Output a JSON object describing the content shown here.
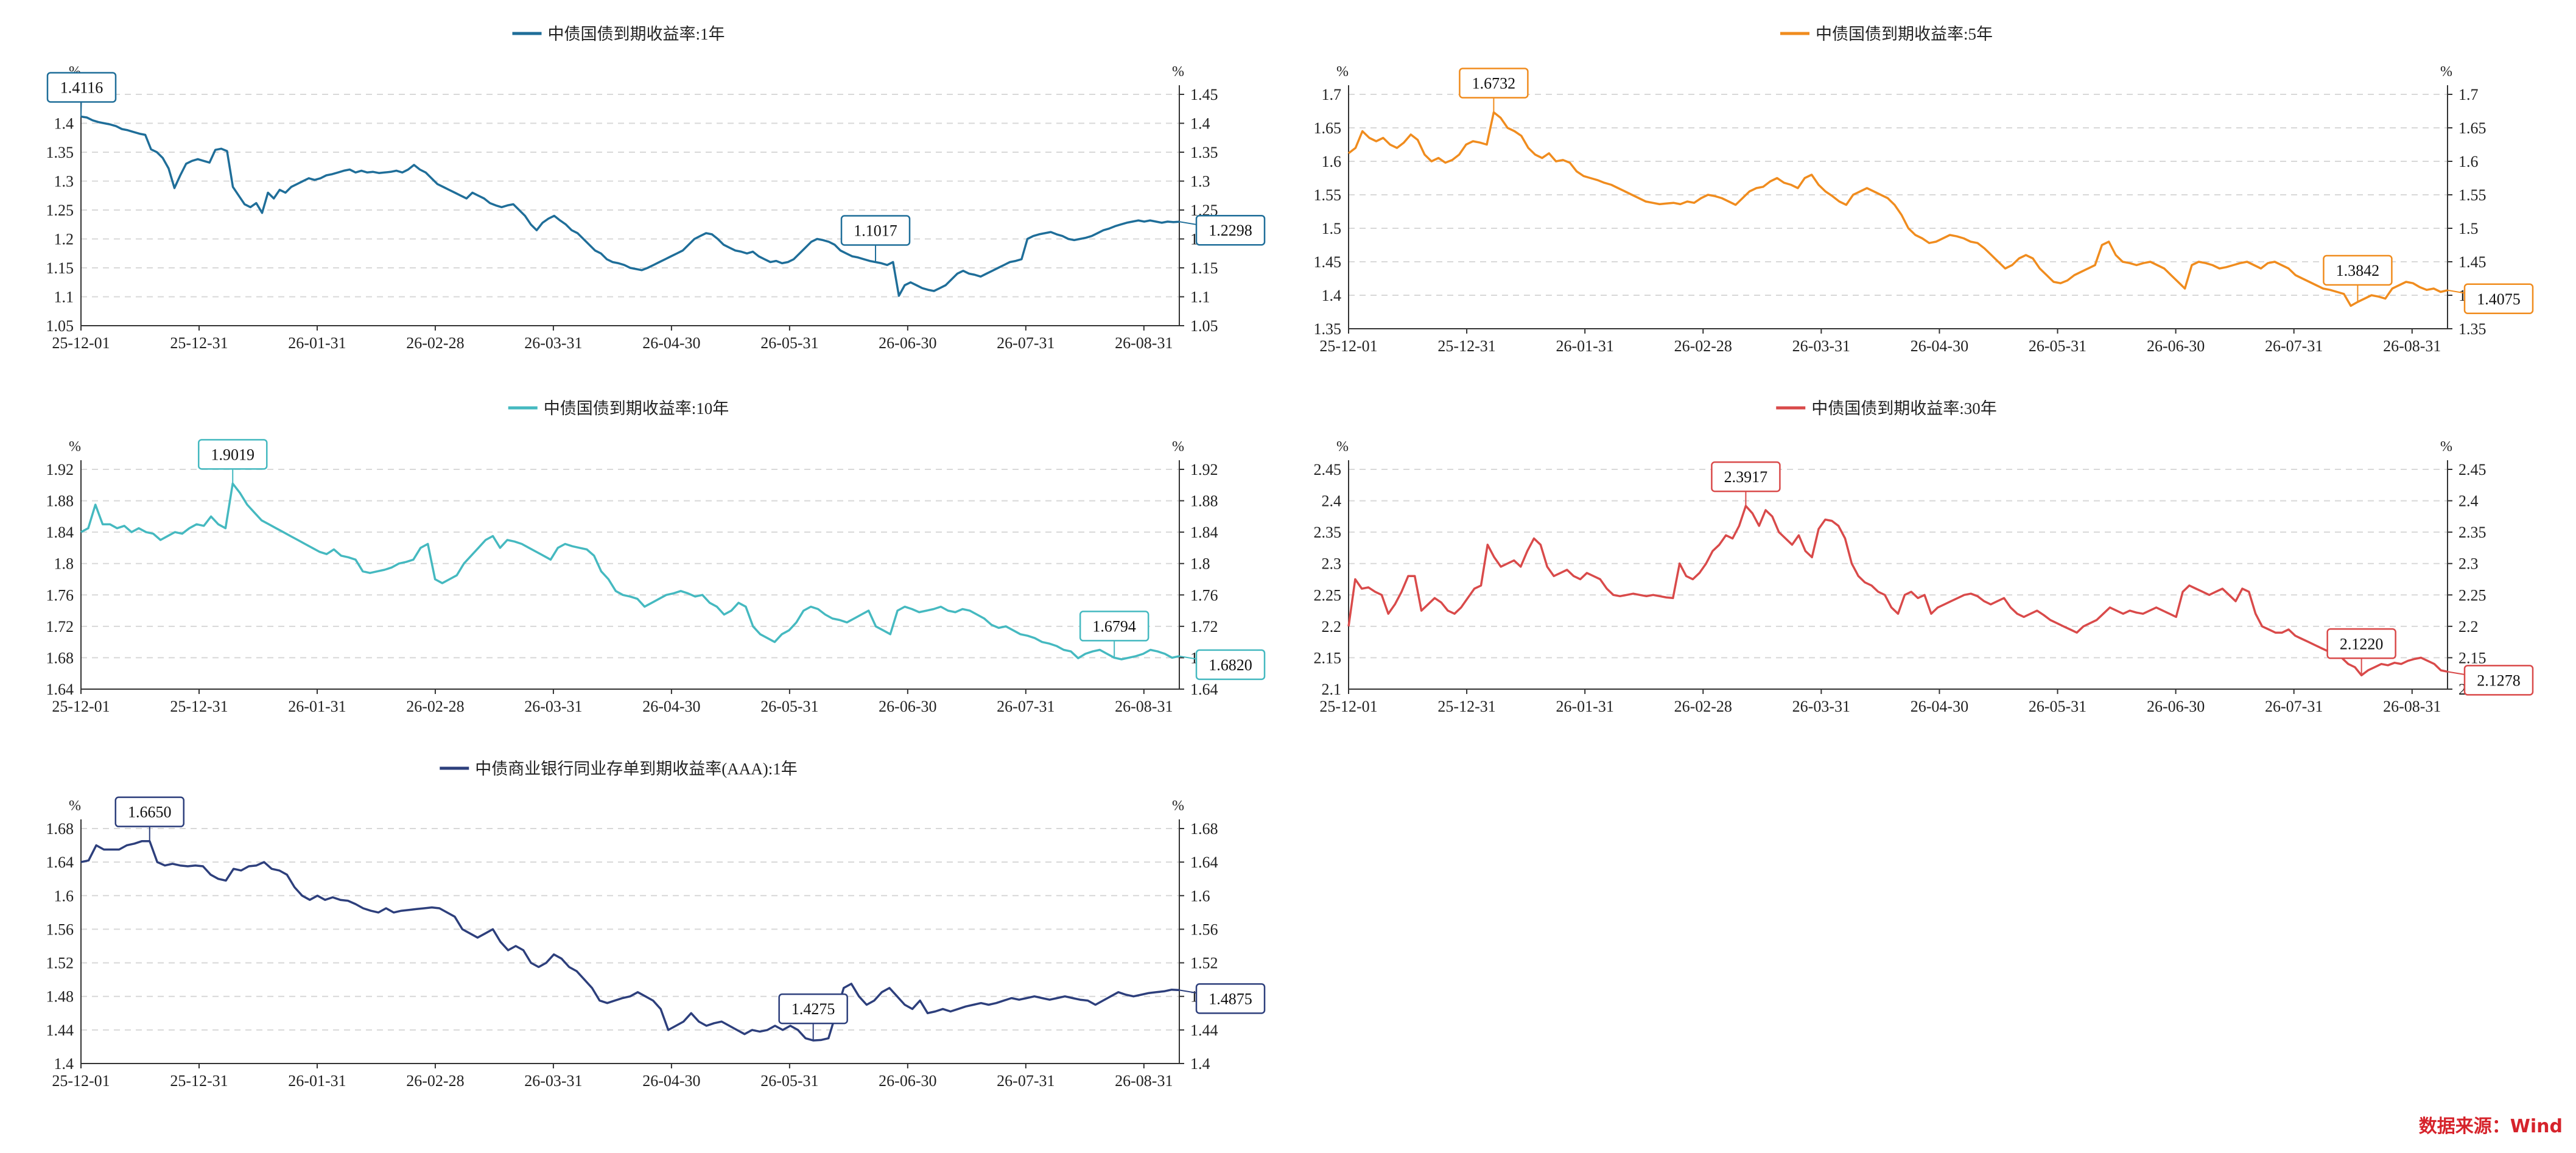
{
  "source_text": "数据来源：Wind",
  "chart_data": [
    {
      "type": "line",
      "title": "中债国债到期收益率:1年",
      "color": "#1f6e99",
      "unit": "%",
      "ylim": [
        1.05,
        1.45
      ],
      "yticks": [
        "1.05",
        "1.1",
        "1.15",
        "1.2",
        "1.25",
        "1.3",
        "1.35",
        "1.4",
        "1.45"
      ],
      "left_top_tick": "1.45",
      "xticks": [
        "25-12-01",
        "25-12-31",
        "26-01-31",
        "26-02-28",
        "26-03-31",
        "26-04-30",
        "26-05-31",
        "26-06-30",
        "26-07-31",
        "26-08-31"
      ],
      "series": [
        {
          "values": [
            1.4116,
            1.41,
            1.405,
            1.402,
            1.4,
            1.398,
            1.395,
            1.39,
            1.388,
            1.385,
            1.382,
            1.38,
            1.355,
            1.35,
            1.34,
            1.322,
            1.288,
            1.31,
            1.33,
            1.335,
            1.338,
            1.335,
            1.332,
            1.354,
            1.356,
            1.352,
            1.29,
            1.275,
            1.26,
            1.255,
            1.262,
            1.245,
            1.28,
            1.27,
            1.285,
            1.28,
            1.29,
            1.295,
            1.3,
            1.305,
            1.302,
            1.305,
            1.31,
            1.312,
            1.315,
            1.318,
            1.32,
            1.315,
            1.318,
            1.315,
            1.316,
            1.314,
            1.315,
            1.316,
            1.318,
            1.315,
            1.32,
            1.328,
            1.32,
            1.315,
            1.305,
            1.295,
            1.29,
            1.285,
            1.28,
            1.275,
            1.27,
            1.28,
            1.275,
            1.27,
            1.262,
            1.258,
            1.255,
            1.258,
            1.26,
            1.25,
            1.24,
            1.225,
            1.215,
            1.228,
            1.235,
            1.24,
            1.232,
            1.225,
            1.215,
            1.21,
            1.2,
            1.19,
            1.18,
            1.175,
            1.165,
            1.16,
            1.158,
            1.155,
            1.15,
            1.148,
            1.146,
            1.15,
            1.155,
            1.16,
            1.165,
            1.17,
            1.175,
            1.18,
            1.19,
            1.2,
            1.205,
            1.21,
            1.208,
            1.2,
            1.19,
            1.185,
            1.18,
            1.178,
            1.175,
            1.178,
            1.17,
            1.165,
            1.16,
            1.162,
            1.158,
            1.16,
            1.165,
            1.175,
            1.185,
            1.195,
            1.2,
            1.198,
            1.195,
            1.19,
            1.18,
            1.175,
            1.17,
            1.168,
            1.165,
            1.162,
            1.16,
            1.158,
            1.155,
            1.16,
            1.1017,
            1.12,
            1.125,
            1.12,
            1.115,
            1.112,
            1.11,
            1.115,
            1.12,
            1.13,
            1.14,
            1.145,
            1.14,
            1.138,
            1.135,
            1.14,
            1.145,
            1.15,
            1.155,
            1.16,
            1.162,
            1.165,
            1.2,
            1.205,
            1.208,
            1.21,
            1.212,
            1.208,
            1.205,
            1.2,
            1.198,
            1.2,
            1.202,
            1.205,
            1.21,
            1.215,
            1.218,
            1.222,
            1.225,
            1.228,
            1.23,
            1.232,
            1.23,
            1.232,
            1.23,
            1.228,
            1.23,
            1.229,
            1.2298
          ]
        }
      ],
      "label_max": {
        "text": "1.4116",
        "index": 0
      },
      "label_min": {
        "text": "1.1017",
        "index": 136
      },
      "label_last": {
        "text": "1.2298"
      }
    },
    {
      "type": "line",
      "title": "中债国债到期收益率:5年",
      "color": "#f08c1e",
      "unit": "%",
      "ylim": [
        1.35,
        1.7
      ],
      "yticks": [
        "1.35",
        "1.4",
        "1.45",
        "1.5",
        "1.55",
        "1.6",
        "1.65",
        "1.7"
      ],
      "xticks": [
        "25-12-01",
        "25-12-31",
        "26-01-31",
        "26-02-28",
        "26-03-31",
        "26-04-30",
        "26-05-31",
        "26-06-30",
        "26-07-31",
        "26-08-31"
      ],
      "series": [
        {
          "values": [
            1.612,
            1.62,
            1.645,
            1.635,
            1.63,
            1.635,
            1.625,
            1.62,
            1.628,
            1.64,
            1.632,
            1.61,
            1.6,
            1.605,
            1.598,
            1.602,
            1.61,
            1.625,
            1.63,
            1.628,
            1.625,
            1.6732,
            1.665,
            1.65,
            1.645,
            1.638,
            1.62,
            1.61,
            1.605,
            1.612,
            1.6,
            1.602,
            1.598,
            1.585,
            1.578,
            1.575,
            1.572,
            1.568,
            1.565,
            1.56,
            1.555,
            1.55,
            1.545,
            1.54,
            1.538,
            1.536,
            1.537,
            1.538,
            1.536,
            1.54,
            1.538,
            1.545,
            1.55,
            1.548,
            1.545,
            1.54,
            1.535,
            1.545,
            1.555,
            1.56,
            1.562,
            1.57,
            1.575,
            1.568,
            1.565,
            1.56,
            1.575,
            1.58,
            1.565,
            1.555,
            1.548,
            1.54,
            1.535,
            1.55,
            1.555,
            1.56,
            1.555,
            1.55,
            1.545,
            1.535,
            1.52,
            1.5,
            1.49,
            1.485,
            1.478,
            1.48,
            1.485,
            1.49,
            1.488,
            1.485,
            1.48,
            1.478,
            1.47,
            1.46,
            1.45,
            1.44,
            1.445,
            1.455,
            1.46,
            1.455,
            1.44,
            1.43,
            1.42,
            1.418,
            1.422,
            1.43,
            1.435,
            1.44,
            1.445,
            1.475,
            1.48,
            1.46,
            1.45,
            1.448,
            1.445,
            1.448,
            1.45,
            1.445,
            1.44,
            1.43,
            1.42,
            1.41,
            1.445,
            1.45,
            1.448,
            1.445,
            1.44,
            1.442,
            1.445,
            1.448,
            1.45,
            1.445,
            1.44,
            1.448,
            1.45,
            1.445,
            1.44,
            1.43,
            1.425,
            1.42,
            1.415,
            1.41,
            1.408,
            1.405,
            1.402,
            1.3842,
            1.39,
            1.395,
            1.4,
            1.398,
            1.395,
            1.41,
            1.415,
            1.42,
            1.418,
            1.412,
            1.408,
            1.41,
            1.405,
            1.4075
          ]
        }
      ],
      "label_max": {
        "text": "1.6732",
        "index": 21
      },
      "label_min": {
        "text": "1.3842",
        "index": 146
      },
      "label_last": {
        "text": "1.4075"
      }
    },
    {
      "type": "line",
      "title": "中债国债到期收益率:10年",
      "color": "#45b9c0",
      "unit": "%",
      "ylim": [
        1.64,
        1.92
      ],
      "yticks": [
        "1.64",
        "1.68",
        "1.72",
        "1.76",
        "1.8",
        "1.84",
        "1.88",
        "1.92"
      ],
      "xticks": [
        "25-12-01",
        "25-12-31",
        "26-01-31",
        "26-02-28",
        "26-03-31",
        "26-04-30",
        "26-05-31",
        "26-06-30",
        "26-07-31",
        "26-08-31"
      ],
      "series": [
        {
          "values": [
            1.84,
            1.845,
            1.875,
            1.85,
            1.85,
            1.845,
            1.848,
            1.84,
            1.845,
            1.84,
            1.838,
            1.83,
            1.835,
            1.84,
            1.838,
            1.845,
            1.85,
            1.848,
            1.86,
            1.85,
            1.845,
            1.9019,
            1.89,
            1.875,
            1.865,
            1.855,
            1.85,
            1.845,
            1.84,
            1.835,
            1.83,
            1.825,
            1.82,
            1.815,
            1.812,
            1.818,
            1.81,
            1.808,
            1.805,
            1.79,
            1.788,
            1.79,
            1.792,
            1.795,
            1.8,
            1.802,
            1.805,
            1.82,
            1.825,
            1.78,
            1.775,
            1.78,
            1.785,
            1.8,
            1.81,
            1.82,
            1.83,
            1.835,
            1.82,
            1.83,
            1.828,
            1.825,
            1.82,
            1.815,
            1.81,
            1.805,
            1.82,
            1.825,
            1.822,
            1.82,
            1.818,
            1.81,
            1.79,
            1.78,
            1.765,
            1.76,
            1.758,
            1.755,
            1.745,
            1.75,
            1.755,
            1.76,
            1.762,
            1.765,
            1.762,
            1.758,
            1.76,
            1.75,
            1.745,
            1.735,
            1.74,
            1.75,
            1.745,
            1.72,
            1.71,
            1.705,
            1.7,
            1.71,
            1.715,
            1.725,
            1.74,
            1.745,
            1.742,
            1.735,
            1.73,
            1.728,
            1.725,
            1.73,
            1.735,
            1.74,
            1.72,
            1.715,
            1.71,
            1.74,
            1.745,
            1.742,
            1.738,
            1.74,
            1.742,
            1.745,
            1.74,
            1.738,
            1.742,
            1.74,
            1.735,
            1.73,
            1.722,
            1.718,
            1.72,
            1.715,
            1.71,
            1.708,
            1.705,
            1.7,
            1.698,
            1.695,
            1.69,
            1.688,
            1.6794,
            1.685,
            1.688,
            1.69,
            1.685,
            1.68,
            1.678,
            1.68,
            1.682,
            1.685,
            1.69,
            1.688,
            1.685,
            1.68,
            1.682
          ]
        }
      ],
      "label_max": {
        "text": "1.9019",
        "index": 21
      },
      "label_min": {
        "text": "1.6794",
        "index": 143
      },
      "label_last": {
        "text": "1.6820"
      }
    },
    {
      "type": "line",
      "title": "中债国债到期收益率:30年",
      "color": "#d94a4a",
      "unit": "%",
      "ylim": [
        2.1,
        2.45
      ],
      "yticks": [
        "2.1",
        "2.15",
        "2.2",
        "2.25",
        "2.3",
        "2.35",
        "2.4",
        "2.45"
      ],
      "xticks": [
        "25-12-01",
        "25-12-31",
        "26-01-31",
        "26-02-28",
        "26-03-31",
        "26-04-30",
        "26-05-31",
        "26-06-30",
        "26-07-31",
        "26-08-31"
      ],
      "series": [
        {
          "values": [
            2.2,
            2.275,
            2.26,
            2.262,
            2.255,
            2.25,
            2.22,
            2.235,
            2.255,
            2.28,
            2.28,
            2.225,
            2.235,
            2.245,
            2.238,
            2.225,
            2.22,
            2.23,
            2.245,
            2.26,
            2.265,
            2.33,
            2.31,
            2.295,
            2.3,
            2.305,
            2.295,
            2.32,
            2.34,
            2.33,
            2.295,
            2.28,
            2.285,
            2.29,
            2.28,
            2.275,
            2.285,
            2.28,
            2.275,
            2.26,
            2.25,
            2.248,
            2.25,
            2.252,
            2.25,
            2.248,
            2.25,
            2.248,
            2.246,
            2.245,
            2.3,
            2.28,
            2.275,
            2.285,
            2.3,
            2.32,
            2.33,
            2.345,
            2.34,
            2.36,
            2.3917,
            2.38,
            2.36,
            2.385,
            2.375,
            2.35,
            2.34,
            2.33,
            2.345,
            2.32,
            2.31,
            2.355,
            2.37,
            2.368,
            2.36,
            2.34,
            2.3,
            2.28,
            2.27,
            2.265,
            2.255,
            2.25,
            2.23,
            2.22,
            2.25,
            2.255,
            2.245,
            2.25,
            2.22,
            2.23,
            2.235,
            2.24,
            2.245,
            2.25,
            2.252,
            2.248,
            2.24,
            2.235,
            2.24,
            2.245,
            2.23,
            2.22,
            2.215,
            2.22,
            2.225,
            2.218,
            2.21,
            2.205,
            2.2,
            2.195,
            2.19,
            2.2,
            2.205,
            2.21,
            2.22,
            2.23,
            2.225,
            2.22,
            2.225,
            2.222,
            2.22,
            2.225,
            2.23,
            2.225,
            2.22,
            2.215,
            2.255,
            2.265,
            2.26,
            2.255,
            2.25,
            2.255,
            2.26,
            2.25,
            2.24,
            2.26,
            2.255,
            2.22,
            2.2,
            2.195,
            2.19,
            2.19,
            2.195,
            2.185,
            2.18,
            2.175,
            2.17,
            2.165,
            2.16,
            2.155,
            2.15,
            2.14,
            2.135,
            2.122,
            2.13,
            2.135,
            2.14,
            2.138,
            2.142,
            2.14,
            2.145,
            2.148,
            2.15,
            2.145,
            2.14,
            2.13,
            2.1278
          ]
        }
      ],
      "label_max": {
        "text": "2.3917",
        "index": 60
      },
      "label_min": {
        "text": "2.1220",
        "index": 153
      },
      "label_last": {
        "text": "2.1278"
      }
    },
    {
      "type": "line",
      "title": "中债商业银行同业存单到期收益率(AAA):1年",
      "color": "#2d3f7c",
      "unit": "%",
      "ylim": [
        1.4,
        1.68
      ],
      "yticks": [
        "1.4",
        "1.44",
        "1.48",
        "1.52",
        "1.56",
        "1.6",
        "1.64",
        "1.68"
      ],
      "xticks": [
        "25-12-01",
        "25-12-31",
        "26-01-31",
        "26-02-28",
        "26-03-31",
        "26-04-30",
        "26-05-31",
        "26-06-30",
        "26-07-31",
        "26-08-31"
      ],
      "series": [
        {
          "values": [
            1.64,
            1.642,
            1.66,
            1.655,
            1.655,
            1.655,
            1.66,
            1.662,
            1.665,
            1.665,
            1.64,
            1.636,
            1.638,
            1.636,
            1.635,
            1.636,
            1.635,
            1.625,
            1.62,
            1.618,
            1.632,
            1.63,
            1.635,
            1.636,
            1.64,
            1.632,
            1.63,
            1.625,
            1.61,
            1.6,
            1.595,
            1.6,
            1.595,
            1.598,
            1.595,
            1.594,
            1.59,
            1.585,
            1.582,
            1.58,
            1.585,
            1.58,
            1.582,
            1.583,
            1.584,
            1.585,
            1.586,
            1.585,
            1.58,
            1.575,
            1.56,
            1.555,
            1.55,
            1.555,
            1.56,
            1.545,
            1.535,
            1.54,
            1.535,
            1.52,
            1.515,
            1.52,
            1.53,
            1.525,
            1.515,
            1.51,
            1.5,
            1.49,
            1.475,
            1.472,
            1.475,
            1.478,
            1.48,
            1.485,
            1.48,
            1.475,
            1.465,
            1.44,
            1.445,
            1.45,
            1.46,
            1.45,
            1.445,
            1.448,
            1.45,
            1.445,
            1.44,
            1.435,
            1.44,
            1.438,
            1.44,
            1.445,
            1.44,
            1.445,
            1.44,
            1.43,
            1.4275,
            1.428,
            1.43,
            1.46,
            1.49,
            1.495,
            1.48,
            1.47,
            1.475,
            1.485,
            1.49,
            1.48,
            1.47,
            1.465,
            1.475,
            1.46,
            1.462,
            1.465,
            1.462,
            1.465,
            1.468,
            1.47,
            1.472,
            1.47,
            1.472,
            1.475,
            1.478,
            1.476,
            1.478,
            1.48,
            1.478,
            1.476,
            1.478,
            1.48,
            1.478,
            1.476,
            1.475,
            1.47,
            1.475,
            1.48,
            1.485,
            1.482,
            1.48,
            1.482,
            1.484,
            1.485,
            1.486,
            1.488,
            1.4875
          ]
        }
      ],
      "label_max": {
        "text": "1.6650",
        "index": 9
      },
      "label_min": {
        "text": "1.4275",
        "index": 96
      },
      "label_last": {
        "text": "1.4875"
      }
    }
  ]
}
